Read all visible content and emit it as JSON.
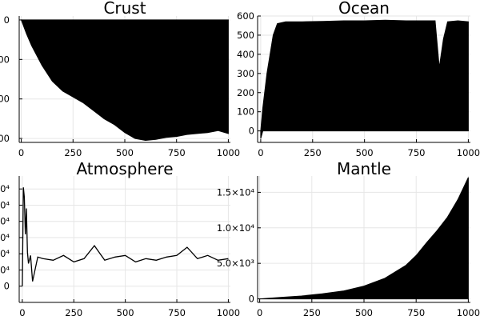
{
  "chart_data": [
    {
      "type": "area",
      "title": "Crust",
      "xlim": [
        -10,
        1010
      ],
      "ylim": [
        -620,
        20
      ],
      "x_ticks": [
        0,
        250,
        500,
        750,
        1000
      ],
      "x_tick_labels": [
        "0",
        "250",
        "500",
        "750",
        "1000"
      ],
      "y_ticks": [
        0,
        -200,
        -400,
        -600
      ],
      "y_tick_labels": [
        "0",
        "00",
        "00",
        "00"
      ],
      "fill": "band",
      "series": [
        {
          "x": [
            0,
            25,
            50,
            100,
            150,
            200,
            250,
            300,
            350,
            400,
            450,
            500,
            550,
            600,
            650,
            700,
            750,
            800,
            850,
            900,
            950,
            1000
          ],
          "lower": [
            0,
            -70,
            -130,
            -230,
            -310,
            -360,
            -390,
            -420,
            -460,
            -500,
            -530,
            -570,
            -600,
            -610,
            -605,
            -595,
            -590,
            -580,
            -575,
            -570,
            -560,
            -575
          ],
          "upper": [
            0,
            0,
            0,
            0,
            0,
            0,
            0,
            0,
            0,
            0,
            0,
            0,
            0,
            0,
            0,
            0,
            0,
            0,
            0,
            0,
            0,
            0
          ]
        }
      ]
    },
    {
      "type": "area",
      "title": "Ocean",
      "xlim": [
        -15,
        1010
      ],
      "ylim": [
        -60,
        600
      ],
      "x_ticks": [
        0,
        250,
        500,
        750,
        1000
      ],
      "x_tick_labels": [
        "0",
        "250",
        "500",
        "750",
        "1000"
      ],
      "y_ticks": [
        0,
        100,
        200,
        300,
        400,
        500,
        600
      ],
      "y_tick_labels": [
        "0",
        "100",
        "200",
        "300",
        "400",
        "500",
        "600"
      ],
      "fill": "band",
      "series": [
        {
          "x": [
            0,
            10,
            30,
            60,
            80,
            120,
            200,
            300,
            400,
            500,
            600,
            700,
            800,
            840,
            860,
            880,
            900,
            950,
            1000
          ],
          "lower": [
            -40,
            0,
            0,
            0,
            0,
            0,
            0,
            0,
            0,
            0,
            0,
            0,
            0,
            0,
            0,
            0,
            0,
            0,
            0
          ],
          "upper": [
            0,
            120,
            300,
            500,
            560,
            570,
            570,
            572,
            575,
            575,
            578,
            575,
            575,
            575,
            330,
            480,
            570,
            575,
            570
          ]
        }
      ]
    },
    {
      "type": "line",
      "title": "Atmosphere",
      "xlim": [
        -15,
        1010
      ],
      "ylim": [
        -1.0,
        6.8
      ],
      "x_ticks": [
        0,
        250,
        500,
        750,
        1000
      ],
      "x_tick_labels": [
        "0",
        "250",
        "500",
        "750",
        "1000"
      ],
      "y_ticks": [
        0,
        1,
        2,
        3,
        4,
        5,
        6
      ],
      "y_tick_labels": [
        "0",
        "0⁴",
        "0⁴",
        "0⁴",
        "0⁴",
        "0⁴",
        "0⁴"
      ],
      "series": [
        {
          "x": [
            0,
            5,
            10,
            15,
            20,
            25,
            30,
            40,
            50,
            75,
            100,
            150,
            200,
            250,
            300,
            350,
            400,
            450,
            500,
            550,
            600,
            650,
            700,
            750,
            800,
            850,
            900,
            950,
            1000
          ],
          "y": [
            0,
            6.1,
            5.5,
            3.2,
            4.8,
            2.1,
            1.4,
            1.9,
            0.3,
            1.8,
            1.7,
            1.6,
            1.9,
            1.5,
            1.7,
            2.5,
            1.6,
            1.8,
            1.9,
            1.5,
            1.7,
            1.6,
            1.8,
            1.9,
            2.4,
            1.7,
            1.9,
            1.6,
            1.7
          ]
        }
      ]
    },
    {
      "type": "area",
      "title": "Mantle",
      "xlim": [
        -10,
        1010
      ],
      "ylim": [
        -500,
        17300
      ],
      "x_ticks": [
        0,
        250,
        500,
        750,
        1000
      ],
      "x_tick_labels": [
        "0",
        "250",
        "500",
        "750",
        "1000"
      ],
      "y_ticks": [
        0,
        5000,
        10000,
        15000
      ],
      "y_tick_labels": [
        "0",
        "5.0×10³",
        "1.0×10⁴",
        "1.5×10⁴"
      ],
      "fill": "band",
      "series": [
        {
          "x": [
            0,
            100,
            200,
            300,
            400,
            500,
            600,
            700,
            750,
            800,
            850,
            900,
            950,
            1000
          ],
          "lower": [
            0,
            0,
            0,
            0,
            0,
            0,
            0,
            0,
            0,
            0,
            0,
            0,
            0,
            0
          ],
          "upper": [
            0,
            200,
            400,
            700,
            1100,
            1800,
            2900,
            4700,
            6100,
            7900,
            9600,
            11500,
            14000,
            17100
          ]
        }
      ]
    }
  ]
}
